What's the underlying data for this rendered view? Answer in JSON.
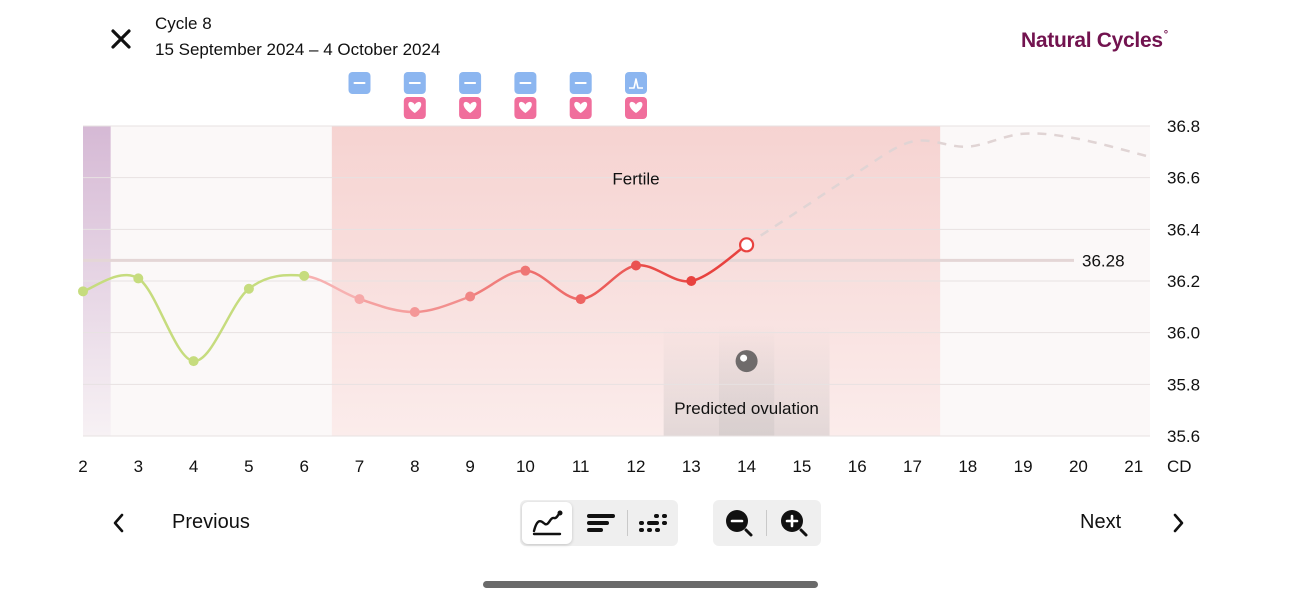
{
  "header": {
    "title": "Cycle 8",
    "date_range": "15 September 2024 – 4 October 2024",
    "brand": "Natural Cycles",
    "brand_mark": "°"
  },
  "chart_data": {
    "type": "line",
    "x": [
      2,
      3,
      4,
      5,
      6,
      7,
      8,
      9,
      10,
      11,
      12,
      13,
      14
    ],
    "values": [
      36.16,
      36.21,
      35.89,
      36.17,
      36.22,
      36.13,
      36.08,
      36.14,
      36.24,
      36.13,
      36.26,
      36.2,
      36.34
    ],
    "x_ticks": [
      "2",
      "3",
      "4",
      "5",
      "6",
      "7",
      "8",
      "9",
      "10",
      "11",
      "12",
      "13",
      "14",
      "15",
      "16",
      "17",
      "18",
      "19",
      "20",
      "21"
    ],
    "x_unit": "CD",
    "y_ticks": [
      "36.8",
      "36.6",
      "36.4",
      "36.2",
      "36.0",
      "35.8",
      "35.6"
    ],
    "ylim": [
      35.6,
      36.8
    ],
    "xlim": [
      2,
      21.3
    ],
    "coverline": {
      "value": 36.28,
      "label": "36.28"
    },
    "prediction_x": [
      14,
      15,
      16,
      17,
      18,
      19,
      20,
      21.3
    ],
    "prediction_values": [
      36.34,
      36.48,
      36.62,
      36.74,
      36.72,
      36.77,
      36.75,
      36.68
    ],
    "fertile_window": {
      "from": 7,
      "to": 17,
      "label": "Fertile"
    },
    "predicted_ovulation": {
      "day": 14,
      "label": "Predicted ovulation"
    },
    "period_until": 2.5,
    "colors": {
      "follicular": "#c6dc7e",
      "luteal": "#e8423f",
      "fertile_light": "#f7b1b1",
      "coverline": "#e4d6d6",
      "prediction": "#e0d4d4",
      "period": "#c9a4c9",
      "brand": "#72134f",
      "test_icon": "#8cb6f0",
      "sex_icon": "#f06e9c"
    }
  },
  "day_markers": [
    {
      "day": 7,
      "test": "negative",
      "sex": false
    },
    {
      "day": 8,
      "test": "negative",
      "sex": true
    },
    {
      "day": 9,
      "test": "negative",
      "sex": true
    },
    {
      "day": 10,
      "test": "negative",
      "sex": true
    },
    {
      "day": 11,
      "test": "negative",
      "sex": true
    },
    {
      "day": 12,
      "test": "positive",
      "sex": true
    }
  ],
  "nav": {
    "previous": "Previous",
    "next": "Next"
  },
  "view_modes": [
    "chart-view",
    "list-view",
    "dots-view"
  ],
  "active_view": "chart-view",
  "zoom": [
    "zoom-out",
    "zoom-in"
  ]
}
